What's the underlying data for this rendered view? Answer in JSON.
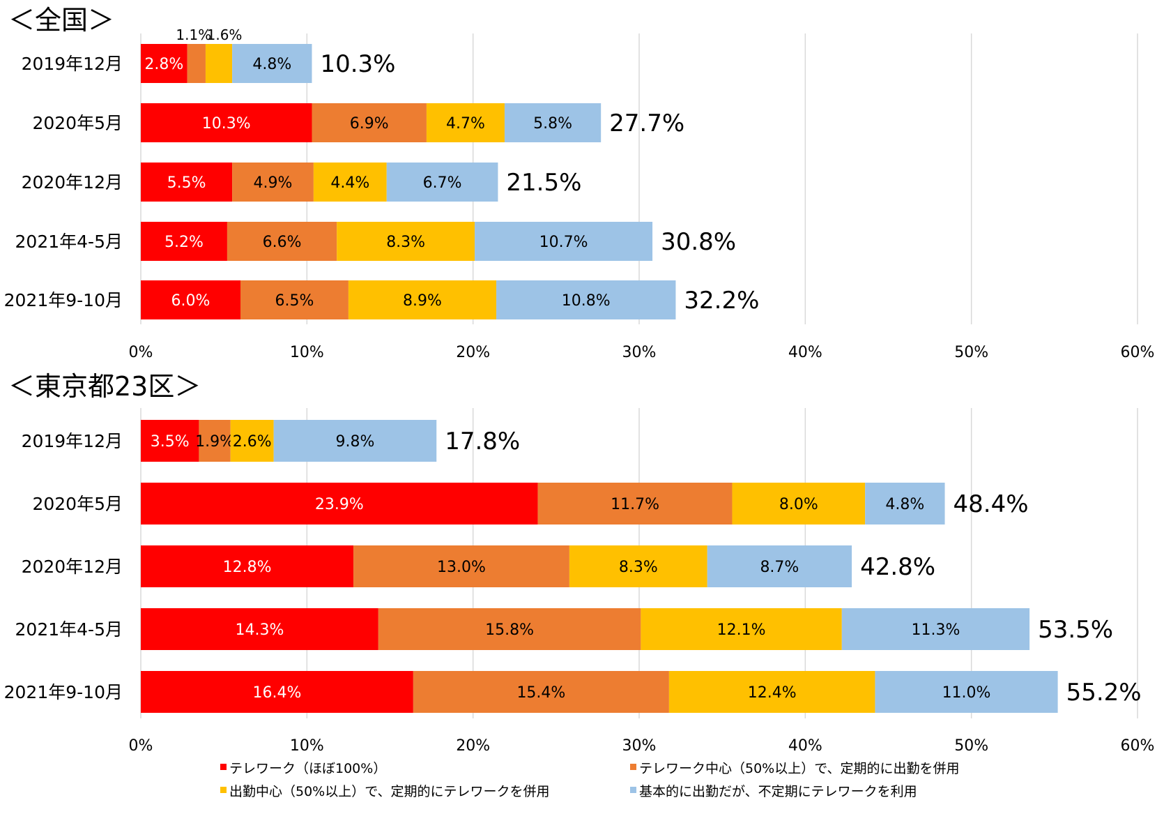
{
  "legend": [
    {
      "label": "テレワーク（ほぼ100%）",
      "color": "#ff0000"
    },
    {
      "label": "テレワーク中心（50%以上）で、定期的に出勤を併用",
      "color": "#ed7d31"
    },
    {
      "label": "出勤中心（50%以上）で、定期的にテレワークを併用",
      "color": "#ffc000"
    },
    {
      "label": "基本的に出勤だが、不定期にテレワークを利用",
      "color": "#9dc3e6"
    }
  ],
  "chart_data": [
    {
      "type": "bar",
      "orientation": "horizontal",
      "stacked": true,
      "title": "＜全国＞",
      "categories": [
        "2019年12月",
        "2020年5月",
        "2020年12月",
        "2021年4-5月",
        "2021年9-10月"
      ],
      "series": [
        {
          "name": "テレワーク（ほぼ100%）",
          "values": [
            2.8,
            10.3,
            5.5,
            5.2,
            6.0
          ],
          "labels": [
            "2.8%",
            "10.3%",
            "5.5%",
            "5.2%",
            "6.0%"
          ]
        },
        {
          "name": "テレワーク中心（50%以上）で、定期的に出勤を併用",
          "values": [
            1.1,
            6.9,
            4.9,
            6.6,
            6.5
          ],
          "labels": [
            "1.1%",
            "6.9%",
            "4.9%",
            "6.6%",
            "6.5%"
          ]
        },
        {
          "name": "出勤中心（50%以上）で、定期的にテレワークを併用",
          "values": [
            1.6,
            4.7,
            4.4,
            8.3,
            8.9
          ],
          "labels": [
            "1.6%",
            "4.7%",
            "4.4%",
            "8.3%",
            "8.9%"
          ]
        },
        {
          "name": "基本的に出勤だが、不定期にテレワークを利用",
          "values": [
            4.8,
            5.8,
            6.7,
            10.7,
            10.8
          ],
          "labels": [
            "4.8%",
            "5.8%",
            "6.7%",
            "10.7%",
            "10.8%"
          ]
        }
      ],
      "totals": [
        "10.3%",
        "27.7%",
        "21.5%",
        "30.8%",
        "32.2%"
      ],
      "xticks": [
        "0%",
        "10%",
        "20%",
        "30%",
        "40%",
        "50%",
        "60%"
      ],
      "xlim": [
        0,
        60
      ],
      "grid": true
    },
    {
      "type": "bar",
      "orientation": "horizontal",
      "stacked": true,
      "title": "＜東京都23区＞",
      "categories": [
        "2019年12月",
        "2020年5月",
        "2020年12月",
        "2021年4-5月",
        "2021年9-10月"
      ],
      "series": [
        {
          "name": "テレワーク（ほぼ100%）",
          "values": [
            3.5,
            23.9,
            12.8,
            14.3,
            16.4
          ],
          "labels": [
            "3.5%",
            "23.9%",
            "12.8%",
            "14.3%",
            "16.4%"
          ]
        },
        {
          "name": "テレワーク中心（50%以上）で、定期的に出勤を併用",
          "values": [
            1.9,
            11.7,
            13.0,
            15.8,
            15.4
          ],
          "labels": [
            "1.9%",
            "11.7%",
            "13.0%",
            "15.8%",
            "15.4%"
          ]
        },
        {
          "name": "出勤中心（50%以上）で、定期的にテレワークを併用",
          "values": [
            2.6,
            8.0,
            8.3,
            12.1,
            12.4
          ],
          "labels": [
            "2.6%",
            "8.0%",
            "8.3%",
            "12.1%",
            "12.4%"
          ]
        },
        {
          "name": "基本的に出勤だが、不定期にテレワークを利用",
          "values": [
            9.8,
            4.8,
            8.7,
            11.3,
            11.0
          ],
          "labels": [
            "9.8%",
            "4.8%",
            "8.7%",
            "11.3%",
            "11.0%"
          ]
        }
      ],
      "totals": [
        "17.8%",
        "48.4%",
        "42.8%",
        "53.5%",
        "55.2%"
      ],
      "xticks": [
        "0%",
        "10%",
        "20%",
        "30%",
        "40%",
        "50%",
        "60%"
      ],
      "xlim": [
        0,
        60
      ],
      "grid": true
    }
  ]
}
